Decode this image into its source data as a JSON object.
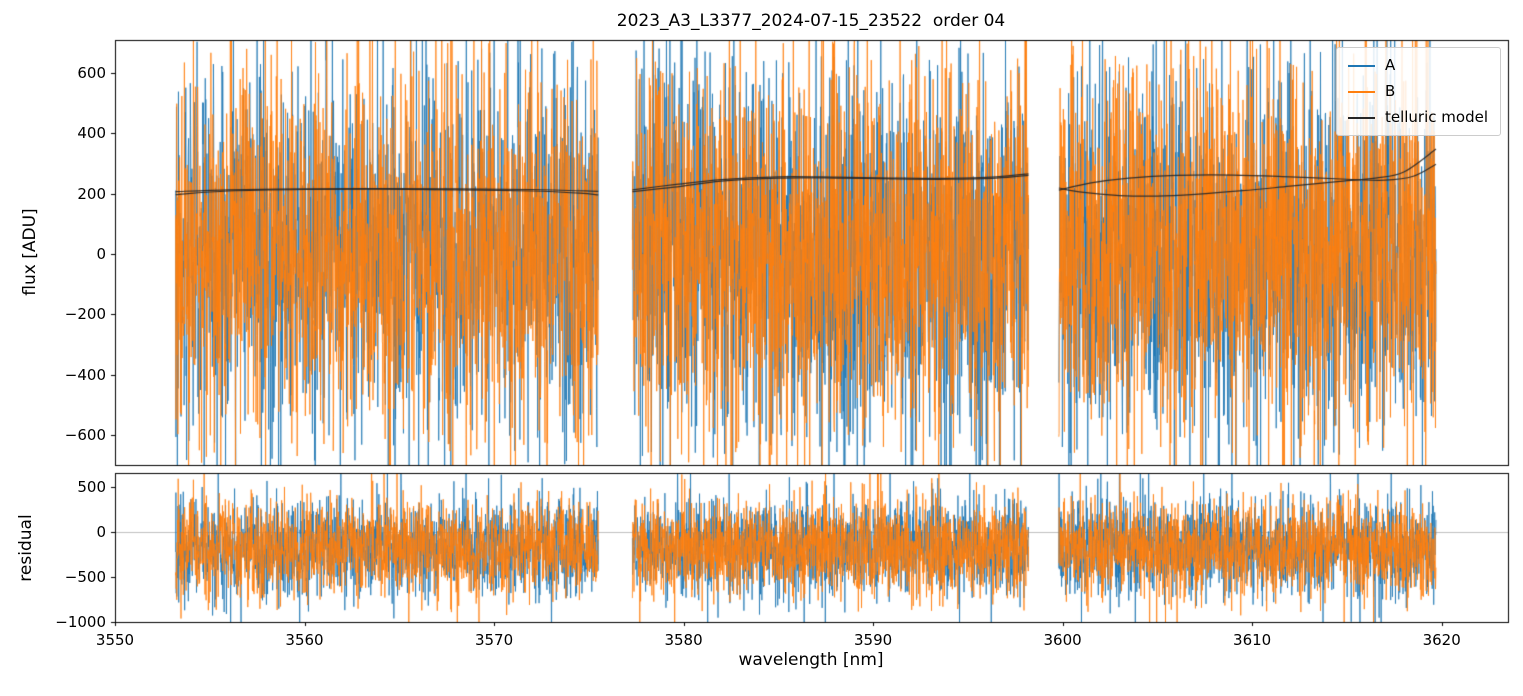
{
  "title": "2023_A3_L3377_2024-07-15_23522  order 04",
  "colors": {
    "series_A": "#1f77b4",
    "series_B": "#ff7f0e",
    "telluric": "#262626",
    "zero_line": "#b0b0b0",
    "axis": "#000000",
    "background": "#ffffff"
  },
  "legend": {
    "items": [
      {
        "label": "A",
        "color": "#1f77b4"
      },
      {
        "label": "B",
        "color": "#ff7f0e"
      },
      {
        "label": "telluric model",
        "color": "#262626"
      }
    ]
  },
  "chart_data": [
    {
      "type": "line",
      "name": "flux",
      "ylabel": "flux [ADU]",
      "xlabel": "",
      "xlim": [
        3550,
        3623.5
      ],
      "ylim": [
        -700,
        710
      ],
      "xticks": [
        3550,
        3560,
        3570,
        3580,
        3590,
        3600,
        3610,
        3620
      ],
      "show_xtick_labels": false,
      "yticks": [
        600,
        400,
        200,
        0,
        -200,
        -400,
        -600
      ],
      "grid": false,
      "legend_position": "upper right",
      "segments_nm": [
        [
          3553.2,
          3575.5
        ],
        [
          3577.3,
          3598.2
        ],
        [
          3599.8,
          3619.7
        ]
      ],
      "series": [
        {
          "name": "A",
          "color": "#1f77b4",
          "noise": {
            "mean": 5,
            "std": 300,
            "points_per_segment": 1500,
            "tail_fraction": 0.05,
            "tail_scale": 1.8,
            "seed": 101
          }
        },
        {
          "name": "B",
          "color": "#ff7f0e",
          "noise": {
            "mean": 5,
            "std": 300,
            "points_per_segment": 1500,
            "tail_fraction": 0.05,
            "tail_scale": 1.8,
            "seed": 202
          }
        }
      ],
      "telluric_model": {
        "color": "#262626",
        "curves": [
          {
            "name": "A",
            "segments": [
              [
                [
                  3553.2,
                  197
                ],
                [
                  3556,
                  209
                ],
                [
                  3560,
                  214
                ],
                [
                  3564,
                  215
                ],
                [
                  3568,
                  213
                ],
                [
                  3572,
                  209
                ],
                [
                  3574.5,
                  202
                ],
                [
                  3575.5,
                  196
                ]
              ],
              [
                [
                  3577.3,
                  207
                ],
                [
                  3579.5,
                  222
                ],
                [
                  3582,
                  242
                ],
                [
                  3585,
                  252
                ],
                [
                  3588,
                  252
                ],
                [
                  3591,
                  249
                ],
                [
                  3594,
                  248
                ],
                [
                  3596.5,
                  252
                ],
                [
                  3598.2,
                  261
                ]
              ],
              [
                [
                  3599.8,
                  212
                ],
                [
                  3601.5,
                  236
                ],
                [
                  3603.5,
                  252
                ],
                [
                  3606,
                  261
                ],
                [
                  3609,
                  262
                ],
                [
                  3612,
                  256
                ],
                [
                  3615,
                  248
                ],
                [
                  3617,
                  245
                ],
                [
                  3618.5,
                  258
                ],
                [
                  3619.7,
                  298
                ]
              ]
            ]
          },
          {
            "name": "B",
            "segments": [
              [
                [
                  3553.2,
                  207
                ],
                [
                  3556,
                  213
                ],
                [
                  3560,
                  216
                ],
                [
                  3564,
                  217
                ],
                [
                  3568,
                  216
                ],
                [
                  3572,
                  214
                ],
                [
                  3575.5,
                  208
                ]
              ],
              [
                [
                  3577.3,
                  213
                ],
                [
                  3579.5,
                  230
                ],
                [
                  3582,
                  247
                ],
                [
                  3585,
                  256
                ],
                [
                  3588,
                  255
                ],
                [
                  3591,
                  252
                ],
                [
                  3594,
                  251
                ],
                [
                  3596.5,
                  256
                ],
                [
                  3598.2,
                  266
                ]
              ],
              [
                [
                  3599.8,
                  219
                ],
                [
                  3601,
                  205
                ],
                [
                  3603,
                  194
                ],
                [
                  3605,
                  192
                ],
                [
                  3607,
                  198
                ],
                [
                  3609.5,
                  210
                ],
                [
                  3612,
                  225
                ],
                [
                  3614.5,
                  240
                ],
                [
                  3616.5,
                  252
                ],
                [
                  3618,
                  272
                ],
                [
                  3619.7,
                  348
                ]
              ]
            ]
          }
        ]
      }
    },
    {
      "type": "line",
      "name": "residual",
      "ylabel": "residual",
      "xlabel": "wavelength [nm]",
      "xlim": [
        3550,
        3623.5
      ],
      "ylim": [
        -1000,
        650
      ],
      "xticks": [
        3550,
        3560,
        3570,
        3580,
        3590,
        3600,
        3610,
        3620
      ],
      "show_xtick_labels": true,
      "yticks": [
        500,
        0,
        -500,
        -1000
      ],
      "grid": false,
      "zero_line": true,
      "segments_nm": [
        [
          3553.2,
          3575.5
        ],
        [
          3577.3,
          3598.2
        ],
        [
          3599.8,
          3619.7
        ]
      ],
      "series": [
        {
          "name": "A",
          "color": "#1f77b4",
          "noise": {
            "mean": -180,
            "std": 260,
            "points_per_segment": 1500,
            "tail_fraction": 0.05,
            "tail_scale": 1.8,
            "seed": 303
          }
        },
        {
          "name": "B",
          "color": "#ff7f0e",
          "noise": {
            "mean": -180,
            "std": 260,
            "points_per_segment": 1500,
            "tail_fraction": 0.05,
            "tail_scale": 1.8,
            "seed": 404
          }
        }
      ]
    }
  ]
}
